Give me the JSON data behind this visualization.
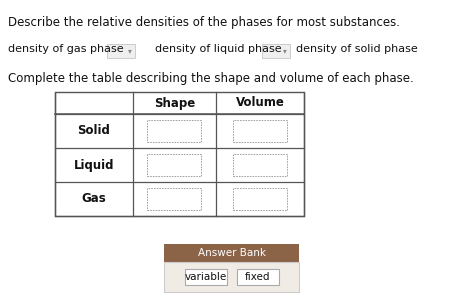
{
  "title_text": "Describe the relative densities of the phases for most substances.",
  "dropdown_text1": "density of gas phase",
  "dropdown_text2": "density of liquid phase",
  "dropdown_text3": "density of solid phase",
  "complete_text": "Complete the table describing the shape and volume of each phase.",
  "table_headers": [
    "",
    "Shape",
    "Volume"
  ],
  "table_rows": [
    "Solid",
    "Liquid",
    "Gas"
  ],
  "answer_bank_title": "Answer Bank",
  "answer_bank_items": [
    "variable",
    "fixed"
  ],
  "bg_color": "#ffffff",
  "table_border_color": "#555555",
  "dashed_box_color": "#999999",
  "answer_bank_header_color": "#8B6347",
  "answer_bank_bg_color": "#f0ebe4",
  "dropdown_border_color": "#cccccc",
  "dropdown_arrow_color": "#888888",
  "text_color": "#111111",
  "title_fontsize": 8.5,
  "body_fontsize": 8.0,
  "table_fontsize": 8.5
}
